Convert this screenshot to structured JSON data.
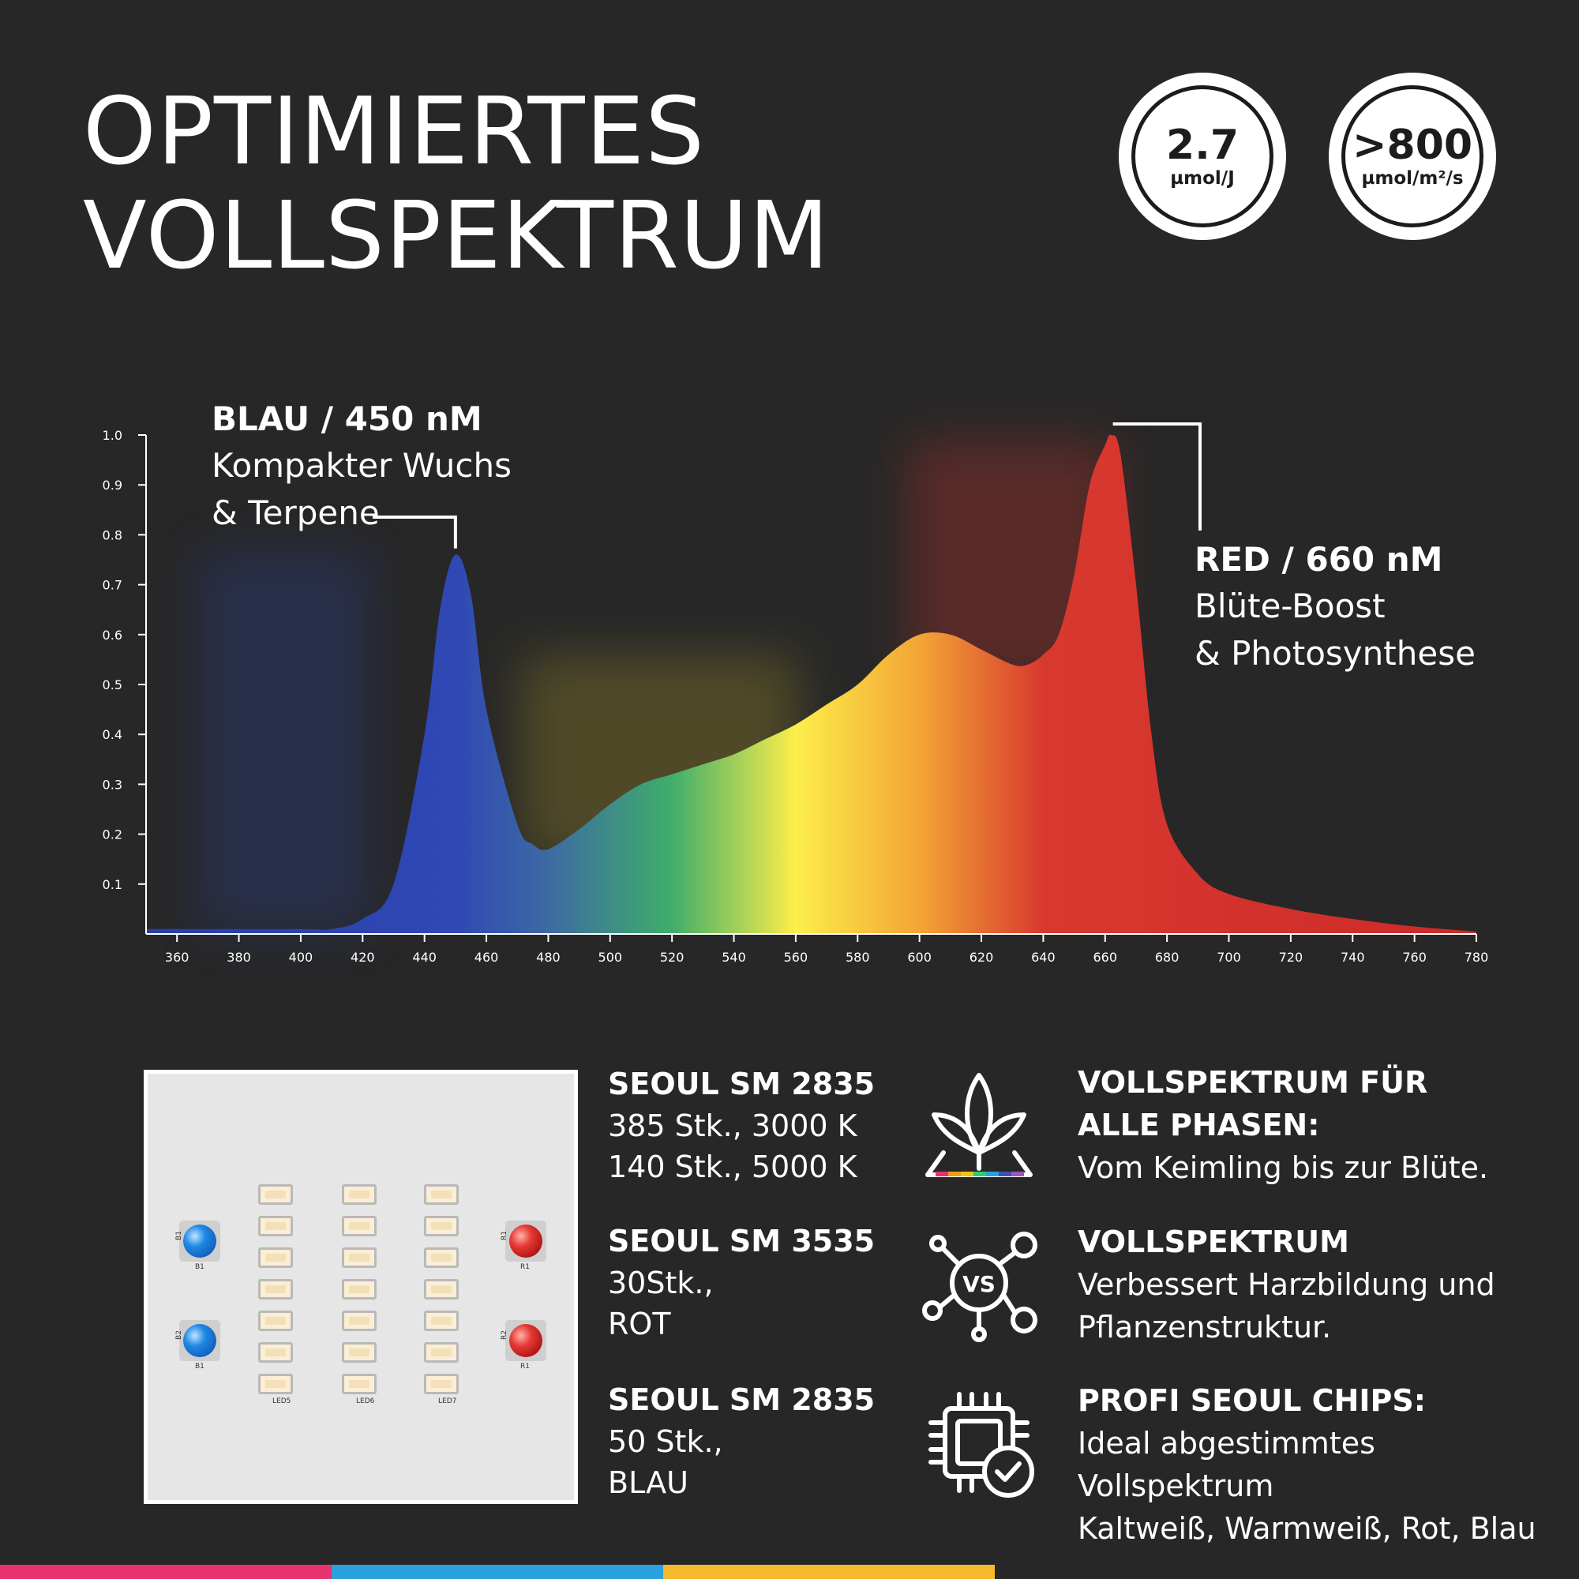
{
  "title": {
    "line1": "OPTIMIERTES",
    "line2": "VOLLSPEKTRUM"
  },
  "badges": [
    {
      "value": "2.7",
      "unit": "µmol/J"
    },
    {
      "value": ">800",
      "unit": "µmol/m²/s"
    }
  ],
  "callouts": {
    "blue": {
      "head": "BLAU / 450 nM",
      "line1": "Kompakter Wuchs",
      "line2": "& Terpene"
    },
    "red": {
      "head": "RED / 660 nM",
      "line1": "Blüte-Boost",
      "line2": "& Photosynthese"
    }
  },
  "chart_data": {
    "type": "area",
    "x": [
      350,
      360,
      380,
      400,
      410,
      420,
      430,
      440,
      445,
      450,
      455,
      460,
      470,
      475,
      480,
      490,
      500,
      510,
      520,
      530,
      540,
      550,
      560,
      570,
      580,
      590,
      600,
      610,
      620,
      630,
      635,
      640,
      645,
      650,
      655,
      660,
      662,
      665,
      670,
      675,
      680,
      690,
      700,
      720,
      740,
      760,
      780
    ],
    "y": [
      0.01,
      0.01,
      0.01,
      0.01,
      0.01,
      0.03,
      0.1,
      0.4,
      0.65,
      0.76,
      0.68,
      0.45,
      0.22,
      0.18,
      0.17,
      0.21,
      0.26,
      0.3,
      0.32,
      0.34,
      0.36,
      0.39,
      0.42,
      0.46,
      0.5,
      0.56,
      0.6,
      0.6,
      0.57,
      0.54,
      0.54,
      0.56,
      0.6,
      0.72,
      0.9,
      0.98,
      1.0,
      0.96,
      0.7,
      0.4,
      0.22,
      0.12,
      0.08,
      0.05,
      0.03,
      0.015,
      0.005
    ],
    "xlim": [
      350,
      780
    ],
    "ylim": [
      0,
      1.0
    ],
    "x_ticks": [
      360,
      380,
      400,
      420,
      440,
      460,
      480,
      500,
      520,
      540,
      560,
      580,
      600,
      620,
      640,
      660,
      680,
      700,
      720,
      740,
      760,
      780
    ],
    "y_ticks": [
      "0.1",
      "0.2",
      "0.3",
      "0.4",
      "0.5",
      "0.6",
      "0.7",
      "0.8",
      "0.9",
      "1.0"
    ],
    "gradient_stops": [
      {
        "nm": 360,
        "color": "#2a3fa8"
      },
      {
        "nm": 450,
        "color": "#2f48b5"
      },
      {
        "nm": 480,
        "color": "#3d6aa3"
      },
      {
        "nm": 520,
        "color": "#3fae6a"
      },
      {
        "nm": 560,
        "color": "#fdee4a"
      },
      {
        "nm": 600,
        "color": "#f3a535"
      },
      {
        "nm": 640,
        "color": "#d8392e"
      },
      {
        "nm": 780,
        "color": "#cc2a2a"
      }
    ],
    "annotations": [
      {
        "peak_nm": 450,
        "peak_value": 0.76,
        "label": "BLAU / 450 nM"
      },
      {
        "peak_nm": 662,
        "peak_value": 1.0,
        "label": "RED / 660 nM"
      }
    ],
    "grid": false
  },
  "board": {
    "blue_leds": [
      "B1",
      "B2"
    ],
    "blue_sub": [
      "B1",
      "B1"
    ],
    "red_leds": [
      "R1",
      "R2"
    ],
    "red_sub": [
      "R1",
      "R1"
    ],
    "columns": [
      "LED5",
      "LED6",
      "LED7"
    ]
  },
  "specs": [
    {
      "head": "SEOUL SM 2835",
      "line1": "385 Stk., 3000 K",
      "line2": "140 Stk., 5000 K"
    },
    {
      "head": "SEOUL SM 3535",
      "line1": "30Stk.,",
      "line2": "ROT"
    },
    {
      "head": "SEOUL SM 2835",
      "line1": "50 Stk.,",
      "line2": "BLAU"
    }
  ],
  "features": [
    {
      "icon": "plant-icon",
      "head1": "VOLLSPEKTRUM FÜR",
      "head2": "ALLE PHASEN:",
      "body1": "Vom Keimling bis zur Blüte."
    },
    {
      "icon": "molecule-vs-icon",
      "head1": "VOLLSPEKTRUM",
      "body1": "Verbessert Harzbildung und",
      "body2": "Pflanzenstruktur.",
      "icon_text": "VS"
    },
    {
      "icon": "chip-check-icon",
      "head1": "PROFI SEOUL CHIPS:",
      "body1": "Ideal abgestimmtes Vollspektrum",
      "body2": "Kaltweiß, Warmweiß, Rot, Blau"
    }
  ],
  "stripe_colors": [
    "#e8316f",
    "#2aa0dc",
    "#f6b92c"
  ]
}
